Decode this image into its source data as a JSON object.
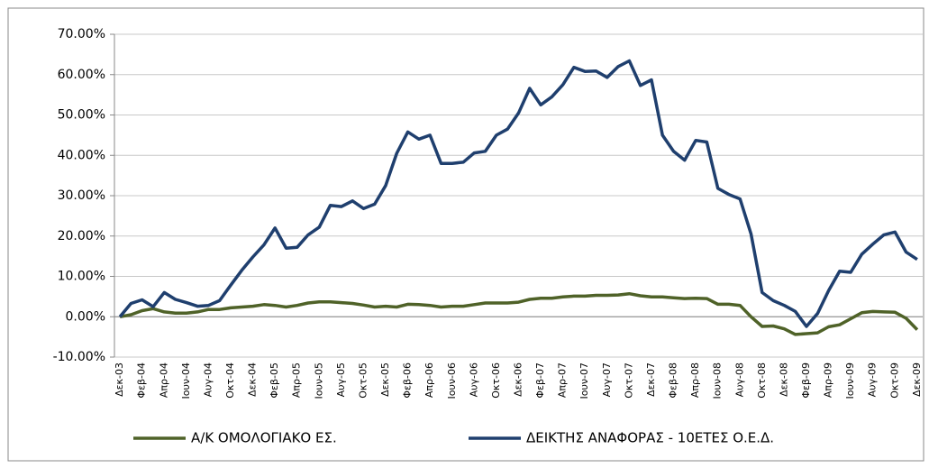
{
  "chart_data": {
    "type": "line",
    "categories": [
      "Δεκ-03",
      null,
      "Φεβ-04",
      null,
      "Απρ-04",
      null,
      "Ιουν-04",
      null,
      "Αυγ-04",
      null,
      "Οκτ-04",
      null,
      "Δεκ-04",
      null,
      "Φεβ-05",
      null,
      "Απρ-05",
      null,
      "Ιουν-05",
      null,
      "Αυγ-05",
      null,
      "Οκτ-05",
      null,
      "Δεκ-05",
      null,
      "Φεβ-06",
      null,
      "Απρ-06",
      null,
      "Ιουν-06",
      null,
      "Αυγ-06",
      null,
      "Οκτ-06",
      null,
      "Δεκ-06",
      null,
      "Φεβ-07",
      null,
      "Απρ-07",
      null,
      "Ιουν-07",
      null,
      "Αυγ-07",
      null,
      "Οκτ-07",
      null,
      "Δεκ-07",
      null,
      "Φεβ-08",
      null,
      "Απρ-08",
      null,
      "Ιουν-08",
      null,
      "Αυγ-08",
      null,
      "Οκτ-08",
      null,
      "Δεκ-08",
      null,
      "Φεβ-09",
      null,
      "Απρ-09",
      null,
      "Ιουν-09",
      null,
      "Αυγ-09",
      null,
      "Οκτ-09",
      null,
      "Δεκ-09"
    ],
    "series": [
      {
        "name": "Α/Κ ΟΜΟΛΟΓΙΑΚΟ ΕΣ.",
        "color": "#4f6228",
        "values": [
          0,
          0.5,
          1.5,
          2.0,
          1.2,
          0.9,
          0.9,
          1.2,
          1.8,
          1.8,
          2.2,
          2.4,
          2.6,
          3.0,
          2.8,
          2.4,
          2.8,
          3.4,
          3.7,
          3.7,
          3.5,
          3.3,
          2.9,
          2.4,
          2.6,
          2.4,
          3.1,
          3.0,
          2.8,
          2.4,
          2.6,
          2.6,
          3.0,
          3.4,
          3.4,
          3.4,
          3.6,
          4.3,
          4.6,
          4.6,
          4.9,
          5.1,
          5.1,
          5.3,
          5.3,
          5.4,
          5.7,
          5.2,
          4.9,
          4.9,
          4.7,
          4.5,
          4.6,
          4.5,
          3.1,
          3.1,
          2.8,
          0,
          -2.4,
          -2.3,
          -3.0,
          -4.4,
          -4.2,
          -4.0,
          -2.5,
          -2.0,
          -0.5,
          1.0,
          1.3,
          1.2,
          1.1,
          -0.4,
          -3.2
        ]
      },
      {
        "name": "ΔΕΙΚΤΗΣ ΑΝΑΦΟΡΑΣ - 10ΕΤΕΣ Ο.Ε.Δ.",
        "color": "#1f3f6e",
        "values": [
          0,
          3.3,
          4.2,
          2.5,
          6.0,
          4.3,
          3.5,
          2.6,
          2.8,
          4.0,
          7.8,
          11.5,
          14.8,
          17.8,
          22.0,
          17.0,
          17.2,
          20.3,
          22.2,
          27.6,
          27.3,
          28.7,
          26.8,
          27.9,
          32.5,
          40.5,
          45.8,
          44.0,
          45.0,
          38.0,
          38.0,
          38.3,
          40.6,
          41.0,
          45.0,
          46.5,
          50.5,
          56.6,
          52.5,
          54.5,
          57.5,
          61.8,
          60.8,
          60.9,
          59.3,
          62.0,
          63.4,
          57.3,
          58.7,
          45.0,
          41.0,
          38.8,
          43.7,
          43.3,
          31.8,
          30.3,
          29.2,
          20.5,
          6.0,
          4.0,
          2.8,
          1.3,
          -2.4,
          0.8,
          6.5,
          11.3,
          11.0,
          15.5,
          18.0,
          20.3,
          21.0,
          16.0,
          14.2
        ]
      }
    ],
    "ylim": [
      -10,
      70
    ],
    "yticks": [
      {
        "value": -10,
        "label": "-10.00%"
      },
      {
        "value": 0,
        "label": "0.00%"
      },
      {
        "value": 10,
        "label": "10.00%"
      },
      {
        "value": 20,
        "label": "20.00%"
      },
      {
        "value": 30,
        "label": "30.00%"
      },
      {
        "value": 40,
        "label": "40.00%"
      },
      {
        "value": 50,
        "label": "50.00%"
      },
      {
        "value": 60,
        "label": "60.00%"
      },
      {
        "value": 70,
        "label": "70.00%"
      }
    ],
    "grid": true,
    "legend": "bottom"
  }
}
